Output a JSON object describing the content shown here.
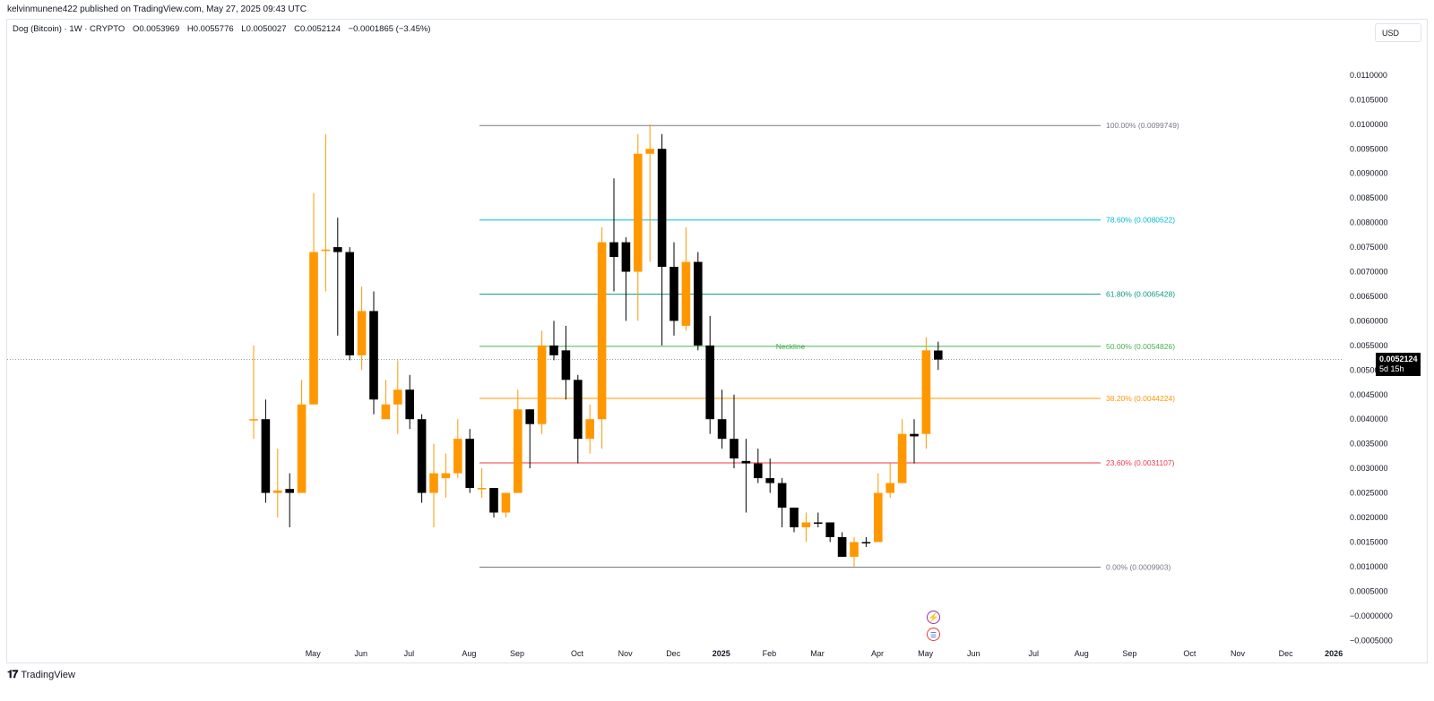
{
  "header": {
    "published": "kelvinmunene422 published on TradingView.com, May 27, 2025 09:43 UTC"
  },
  "legend": {
    "symbol": "Dog (Bitcoin) · 1W · CRYPTO",
    "open": "O0.0053969",
    "high": "H0.0055776",
    "low": "L0.0050027",
    "close": "C0.0052124",
    "change": "−0.0001865 (−3.45%)"
  },
  "currency": "USD",
  "last_price": {
    "value": "0.0052124",
    "countdown": "5d 15h"
  },
  "footer": {
    "brand": "TradingView"
  },
  "icons": {
    "event1": "lightning-icon",
    "event2": "us-flag-icon"
  },
  "colors": {
    "up": "#ff9800",
    "down": "#000000"
  },
  "chart_data": {
    "type": "candlestick",
    "title": "",
    "timeframe": "1W",
    "ylim": [
      -0.00055,
      0.0118
    ],
    "y_ticks": [
      "−0.0005000",
      "−0.0000000",
      "0.0005000",
      "0.0010000",
      "0.0015000",
      "0.0020000",
      "0.0025000",
      "0.0030000",
      "0.0035000",
      "0.0040000",
      "0.0045000",
      "0.0050000",
      "0.0055000",
      "0.0060000",
      "0.0065000",
      "0.0070000",
      "0.0075000",
      "0.0080000",
      "0.0085000",
      "0.0090000",
      "0.0095000",
      "0.0100000",
      "0.0105000",
      "0.0110000"
    ],
    "y_tick_values": [
      -0.0005,
      0,
      0.0005,
      0.001,
      0.0015,
      0.002,
      0.0025,
      0.003,
      0.0035,
      0.004,
      0.0045,
      0.005,
      0.0055,
      0.006,
      0.0065,
      0.007,
      0.0075,
      0.008,
      0.0085,
      0.009,
      0.0095,
      0.01,
      0.0105,
      0.011
    ],
    "x_ticks": [
      {
        "label": "May",
        "week": 3
      },
      {
        "label": "Jun",
        "week": 7
      },
      {
        "label": "Jul",
        "week": 11
      },
      {
        "label": "Aug",
        "week": 16
      },
      {
        "label": "Sep",
        "week": 20
      },
      {
        "label": "Oct",
        "week": 25
      },
      {
        "label": "Nov",
        "week": 29
      },
      {
        "label": "Dec",
        "week": 33
      },
      {
        "label": "2025",
        "week": 37,
        "bold": true
      },
      {
        "label": "Feb",
        "week": 41
      },
      {
        "label": "Mar",
        "week": 45
      },
      {
        "label": "Apr",
        "week": 50
      },
      {
        "label": "May",
        "week": 54
      },
      {
        "label": "Jun",
        "week": 58
      },
      {
        "label": "Jul",
        "week": 63
      },
      {
        "label": "Aug",
        "week": 67
      },
      {
        "label": "Sep",
        "week": 71
      },
      {
        "label": "Oct",
        "week": 76
      },
      {
        "label": "Nov",
        "week": 80
      },
      {
        "label": "Dec",
        "week": 84
      },
      {
        "label": "2026",
        "week": 88,
        "bold": true
      }
    ],
    "candles": [
      {
        "o": 0.004,
        "h": 0.0055,
        "l": 0.0036,
        "c": 0.004
      },
      {
        "o": 0.004,
        "h": 0.0044,
        "l": 0.0023,
        "c": 0.0025
      },
      {
        "o": 0.0025,
        "h": 0.0034,
        "l": 0.002,
        "c": 0.00255
      },
      {
        "o": 0.00258,
        "h": 0.0029,
        "l": 0.0018,
        "c": 0.0025
      },
      {
        "o": 0.0025,
        "h": 0.0048,
        "l": 0.0025,
        "c": 0.0043
      },
      {
        "o": 0.0043,
        "h": 0.0086,
        "l": 0.0043,
        "c": 0.0074
      },
      {
        "o": 0.00745,
        "h": 0.0098,
        "l": 0.0066,
        "c": 0.00745
      },
      {
        "o": 0.0075,
        "h": 0.0081,
        "l": 0.0057,
        "c": 0.0074
      },
      {
        "o": 0.0074,
        "h": 0.0075,
        "l": 0.0052,
        "c": 0.0053
      },
      {
        "o": 0.0053,
        "h": 0.0067,
        "l": 0.005,
        "c": 0.0062
      },
      {
        "o": 0.0062,
        "h": 0.0066,
        "l": 0.0041,
        "c": 0.0044
      },
      {
        "o": 0.004,
        "h": 0.0048,
        "l": 0.004,
        "c": 0.0043
      },
      {
        "o": 0.0043,
        "h": 0.0052,
        "l": 0.0037,
        "c": 0.0046
      },
      {
        "o": 0.0046,
        "h": 0.0049,
        "l": 0.0038,
        "c": 0.004
      },
      {
        "o": 0.004,
        "h": 0.0041,
        "l": 0.0023,
        "c": 0.0025
      },
      {
        "o": 0.0025,
        "h": 0.0035,
        "l": 0.0018,
        "c": 0.0029
      },
      {
        "o": 0.0028,
        "h": 0.0033,
        "l": 0.0024,
        "c": 0.0029
      },
      {
        "o": 0.0029,
        "h": 0.004,
        "l": 0.0028,
        "c": 0.0036
      },
      {
        "o": 0.0036,
        "h": 0.0038,
        "l": 0.0025,
        "c": 0.0026
      },
      {
        "o": 0.0026,
        "h": 0.003,
        "l": 0.0024,
        "c": 0.0026
      },
      {
        "o": 0.0026,
        "h": 0.0026,
        "l": 0.002,
        "c": 0.0021
      },
      {
        "o": 0.0021,
        "h": 0.0025,
        "l": 0.002,
        "c": 0.0025
      },
      {
        "o": 0.0025,
        "h": 0.0046,
        "l": 0.0025,
        "c": 0.0042
      },
      {
        "o": 0.0042,
        "h": 0.0042,
        "l": 0.003,
        "c": 0.0039
      },
      {
        "o": 0.0039,
        "h": 0.0058,
        "l": 0.0037,
        "c": 0.0055
      },
      {
        "o": 0.0055,
        "h": 0.006,
        "l": 0.0052,
        "c": 0.0053
      },
      {
        "o": 0.0054,
        "h": 0.0059,
        "l": 0.0044,
        "c": 0.0048
      },
      {
        "o": 0.0048,
        "h": 0.0049,
        "l": 0.0031,
        "c": 0.0036
      },
      {
        "o": 0.0036,
        "h": 0.0043,
        "l": 0.0033,
        "c": 0.004
      },
      {
        "o": 0.004,
        "h": 0.0079,
        "l": 0.0034,
        "c": 0.0076
      },
      {
        "o": 0.0076,
        "h": 0.0089,
        "l": 0.0066,
        "c": 0.0073
      },
      {
        "o": 0.0076,
        "h": 0.0077,
        "l": 0.006,
        "c": 0.007
      },
      {
        "o": 0.007,
        "h": 0.0098,
        "l": 0.006,
        "c": 0.0094
      },
      {
        "o": 0.0094,
        "h": 0.01,
        "l": 0.0072,
        "c": 0.0095
      },
      {
        "o": 0.0095,
        "h": 0.0098,
        "l": 0.0055,
        "c": 0.0071
      },
      {
        "o": 0.0071,
        "h": 0.0076,
        "l": 0.0057,
        "c": 0.006
      },
      {
        "o": 0.0059,
        "h": 0.0079,
        "l": 0.0058,
        "c": 0.0072
      },
      {
        "o": 0.0072,
        "h": 0.0074,
        "l": 0.0054,
        "c": 0.0055
      },
      {
        "o": 0.0055,
        "h": 0.0061,
        "l": 0.0037,
        "c": 0.004
      },
      {
        "o": 0.004,
        "h": 0.0046,
        "l": 0.0034,
        "c": 0.0036
      },
      {
        "o": 0.0036,
        "h": 0.0045,
        "l": 0.003,
        "c": 0.0032
      },
      {
        "o": 0.00315,
        "h": 0.0036,
        "l": 0.0021,
        "c": 0.0031
      },
      {
        "o": 0.0031,
        "h": 0.0034,
        "l": 0.0027,
        "c": 0.0028
      },
      {
        "o": 0.0028,
        "h": 0.0032,
        "l": 0.0025,
        "c": 0.0027
      },
      {
        "o": 0.0027,
        "h": 0.0028,
        "l": 0.0018,
        "c": 0.0022
      },
      {
        "o": 0.0022,
        "h": 0.0022,
        "l": 0.0017,
        "c": 0.0018
      },
      {
        "o": 0.0018,
        "h": 0.0021,
        "l": 0.0015,
        "c": 0.0019
      },
      {
        "o": 0.0019,
        "h": 0.0021,
        "l": 0.0018,
        "c": 0.00188
      },
      {
        "o": 0.0019,
        "h": 0.0019,
        "l": 0.0015,
        "c": 0.0016
      },
      {
        "o": 0.0016,
        "h": 0.0017,
        "l": 0.0012,
        "c": 0.0012
      },
      {
        "o": 0.0012,
        "h": 0.0016,
        "l": 0.00099,
        "c": 0.0015
      },
      {
        "o": 0.0015,
        "h": 0.0016,
        "l": 0.0014,
        "c": 0.00148
      },
      {
        "o": 0.0015,
        "h": 0.0029,
        "l": 0.0015,
        "c": 0.0025
      },
      {
        "o": 0.0025,
        "h": 0.0031,
        "l": 0.0024,
        "c": 0.0027
      },
      {
        "o": 0.0027,
        "h": 0.004,
        "l": 0.0027,
        "c": 0.0037
      },
      {
        "o": 0.0037,
        "h": 0.004,
        "l": 0.0031,
        "c": 0.00365
      },
      {
        "o": 0.0037,
        "h": 0.00567,
        "l": 0.0034,
        "c": 0.0054
      },
      {
        "o": 0.0053969,
        "h": 0.0055776,
        "l": 0.0050027,
        "c": 0.0052124
      }
    ],
    "first_candle_week": 0,
    "fibonacci": [
      {
        "level": "100.00%",
        "value": "(0.0099749)",
        "price": 0.0099749,
        "color": "#787b86"
      },
      {
        "level": "78.60%",
        "value": "(0.0080522)",
        "price": 0.0080522,
        "color": "#00bcd4"
      },
      {
        "level": "61.80%",
        "value": "(0.0065428)",
        "price": 0.0065428,
        "color": "#089981"
      },
      {
        "level": "50.00%",
        "value": "(0.0054826)",
        "price": 0.0054826,
        "color": "#4caf50"
      },
      {
        "level": "38.20%",
        "value": "(0.0044224)",
        "price": 0.0044224,
        "color": "#ff9800"
      },
      {
        "level": "23.60%",
        "value": "(0.0031107)",
        "price": 0.0031107,
        "color": "#f23645"
      },
      {
        "level": "0.00%",
        "value": "(0.0009903)",
        "price": 0.0009903,
        "color": "#787b86"
      }
    ],
    "annotations": [
      {
        "text": "Neckline",
        "price": 0.0054826,
        "color": "#4caf50"
      }
    ],
    "last_price": 0.0052124
  }
}
